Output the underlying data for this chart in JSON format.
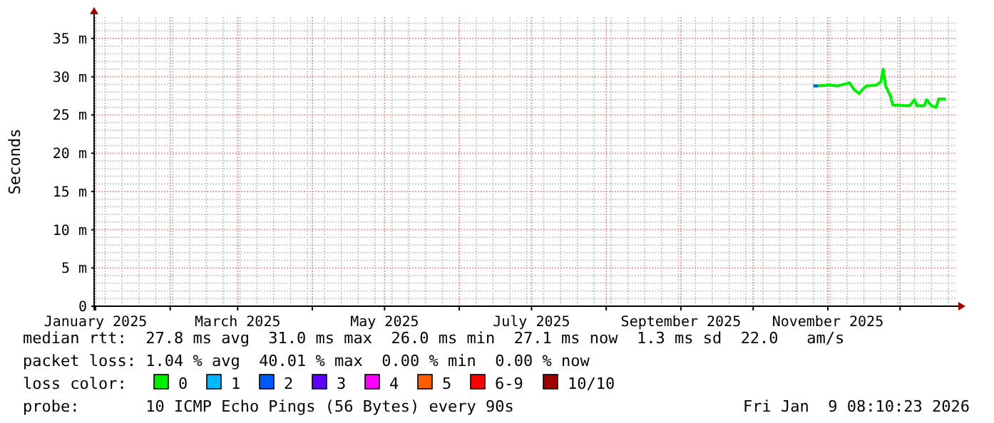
{
  "chart_data": {
    "type": "line",
    "ylabel": "Seconds",
    "legend_title": "loss color:",
    "legend": "bottom",
    "grid": true,
    "xlim": [
      "2025-01-01",
      "2025-12-24"
    ],
    "xticks": [
      {
        "value": "2025-01-01",
        "label": "January 2025"
      },
      {
        "value": "2025-02-01",
        "label": null
      },
      {
        "value": "2025-03-01",
        "label": "March 2025"
      },
      {
        "value": "2025-04-01",
        "label": null
      },
      {
        "value": "2025-05-01",
        "label": "May 2025"
      },
      {
        "value": "2025-06-01",
        "label": null
      },
      {
        "value": "2025-07-01",
        "label": "July 2025"
      },
      {
        "value": "2025-08-01",
        "label": null
      },
      {
        "value": "2025-09-01",
        "label": "September 2025"
      },
      {
        "value": "2025-10-01",
        "label": null
      },
      {
        "value": "2025-11-01",
        "label": "November 2025"
      },
      {
        "value": "2025-12-01",
        "label": null
      }
    ],
    "ylim": [
      0,
      37.8
    ],
    "yticks": [
      {
        "value": 0,
        "label": "0"
      },
      {
        "value": 5,
        "label": "5 m"
      },
      {
        "value": 10,
        "label": "10 m"
      },
      {
        "value": 15,
        "label": "15 m"
      },
      {
        "value": 20,
        "label": "20 m"
      },
      {
        "value": 25,
        "label": "25 m"
      },
      {
        "value": 30,
        "label": "30 m"
      },
      {
        "value": 35,
        "label": "35 m"
      }
    ],
    "series": [
      {
        "name": "0",
        "color": "#00ee00",
        "x": [
          "2025-10-26",
          "2025-11-02",
          "2025-11-05",
          "2025-11-10",
          "2025-11-12",
          "2025-11-14",
          "2025-11-15",
          "2025-11-17",
          "2025-11-21",
          "2025-11-23",
          "2025-11-24",
          "2025-11-25",
          "2025-11-27",
          "2025-11-28",
          "2025-12-05",
          "2025-12-07",
          "2025-12-08",
          "2025-12-11",
          "2025-12-12",
          "2025-12-14",
          "2025-12-16",
          "2025-12-17",
          "2025-12-20"
        ],
        "values": [
          28.8,
          28.9,
          28.8,
          29.2,
          28.3,
          27.8,
          28.2,
          28.8,
          28.9,
          29.3,
          31.0,
          28.8,
          27.5,
          26.3,
          26.2,
          27.0,
          26.2,
          26.2,
          27.0,
          26.2,
          26.0,
          27.1,
          27.1
        ]
      },
      {
        "name": "1",
        "color": "#00b8ff"
      },
      {
        "name": "2",
        "color": "#0059ff",
        "x": [
          "2025-10-26",
          "2025-10-28"
        ],
        "values": [
          28.8,
          28.8
        ]
      },
      {
        "name": "3",
        "color": "#5e00ff"
      },
      {
        "name": "4",
        "color": "#ff00ff"
      },
      {
        "name": "5",
        "color": "#ff5e00"
      },
      {
        "name": "6-9",
        "color": "#ff0000"
      },
      {
        "name": "10/10",
        "color": "#a10000"
      }
    ],
    "annotations": [
      "median rtt:  27.8 ms avg  31.0 ms max  26.0 ms min  27.1 ms now  1.3 ms sd  22.0   am/s",
      "packet loss: 1.04 % avg  40.01 % max  0.00 % min  0.00 % now",
      "probe:       10 ICMP Echo Pings (56 Bytes) every 90s",
      "Fri Jan  9 08:10:23 2026"
    ]
  }
}
